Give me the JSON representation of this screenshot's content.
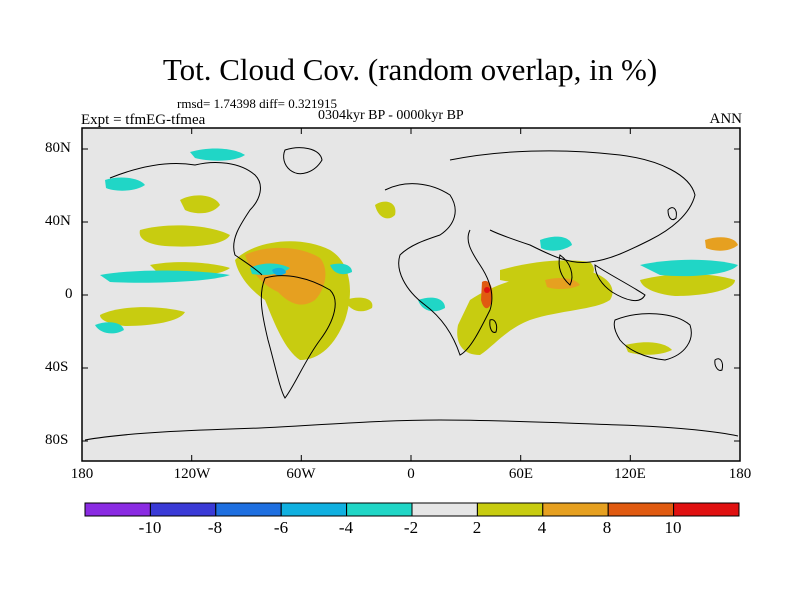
{
  "header": {
    "title": "Tot. Cloud Cov. (random overlap, in %)",
    "stats": "rmsd= 1.74398 diff= 0.321915",
    "period": "0304kyr BP - 0000kyr BP",
    "experiment": "Expt = tfmEG-tfmea",
    "season": "ANN"
  },
  "map": {
    "lat_ticks": [
      "80N",
      "40N",
      "0",
      "40S",
      "80S"
    ],
    "lon_ticks": [
      "180",
      "120W",
      "60W",
      "0",
      "60E",
      "120E",
      "180"
    ],
    "background_color": "#e6e6e6"
  },
  "colorbar": {
    "labels": [
      "-10",
      "-8",
      "-6",
      "-4",
      "-2",
      "2",
      "4",
      "8",
      "10"
    ],
    "colors": [
      "#8a2be2",
      "#3a3ad6",
      "#1e6fe0",
      "#10b0e0",
      "#20d6c6",
      "#e6e6e6",
      "#c8cc10",
      "#e6a020",
      "#e05a10",
      "#e01010"
    ]
  }
}
